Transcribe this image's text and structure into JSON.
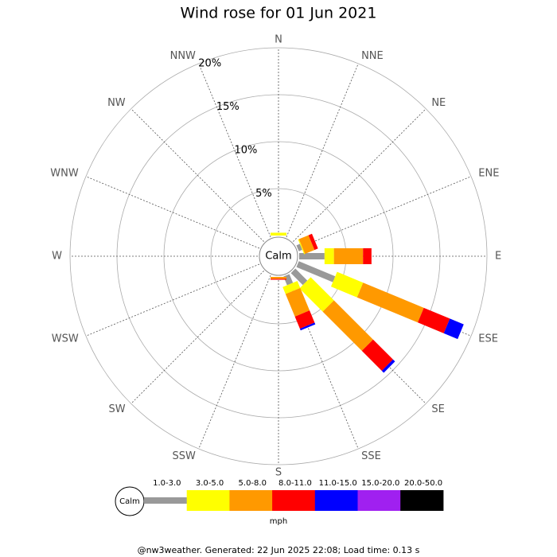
{
  "chart_data": {
    "type": "wind_rose",
    "title": "Wind rose for 01 Jun 2021",
    "categories": [
      "N",
      "NNE",
      "NE",
      "ENE",
      "E",
      "ESE",
      "SE",
      "SSE",
      "S",
      "SSW",
      "SW",
      "WSW",
      "W",
      "WNW",
      "NW",
      "NNW"
    ],
    "center_label": "Calm",
    "ylim": [
      0,
      20
    ],
    "yticks": [
      {
        "value": 5,
        "label": "5%"
      },
      {
        "value": 10,
        "label": "10%"
      },
      {
        "value": 15,
        "label": "15%"
      },
      {
        "value": 20,
        "label": "20%"
      }
    ],
    "unit_label": "mph",
    "series": [
      {
        "name": "1.0-3.0",
        "color": "#999999",
        "values": [
          0,
          0,
          0,
          0.4,
          2.7,
          4.2,
          1.8,
          1.0,
          0,
          0,
          0,
          0,
          0,
          0,
          0,
          0
        ]
      },
      {
        "name": "3.0-5.0",
        "color": "#ffff00",
        "values": [
          0.3,
          0,
          0,
          0.1,
          1.0,
          3.0,
          3.5,
          0.8,
          0,
          0,
          0,
          0,
          0,
          0,
          0,
          0
        ]
      },
      {
        "name": "5.0-8.0",
        "color": "#ff9900",
        "values": [
          0,
          0,
          0,
          1.1,
          3.1,
          7.0,
          5.9,
          2.6,
          0.2,
          0,
          0,
          0,
          0,
          0,
          0,
          0
        ]
      },
      {
        "name": "8.0-11.0",
        "color": "#ff0000",
        "values": [
          0,
          0,
          0,
          0.4,
          0.9,
          3.0,
          3.0,
          1.4,
          0.1,
          0,
          0,
          0,
          0,
          0,
          0,
          0
        ]
      },
      {
        "name": "11.0-15.0",
        "color": "#0000ff",
        "values": [
          0,
          0,
          0,
          0,
          0,
          1.6,
          0.3,
          0.2,
          0,
          0,
          0,
          0,
          0,
          0,
          0,
          0
        ]
      },
      {
        "name": "15.0-20.0",
        "color": "#a020f0",
        "values": [
          0,
          0,
          0,
          0,
          0,
          0,
          0,
          0,
          0,
          0,
          0,
          0,
          0,
          0,
          0,
          0
        ]
      },
      {
        "name": "20.0-50.0",
        "color": "#000000",
        "values": [
          0,
          0,
          0,
          0,
          0,
          0,
          0,
          0,
          0,
          0,
          0,
          0,
          0,
          0,
          0,
          0
        ]
      }
    ],
    "footer": "@nw3weather. Generated: 22 Jun 2025 22:08; Load time: 0.13 s"
  }
}
